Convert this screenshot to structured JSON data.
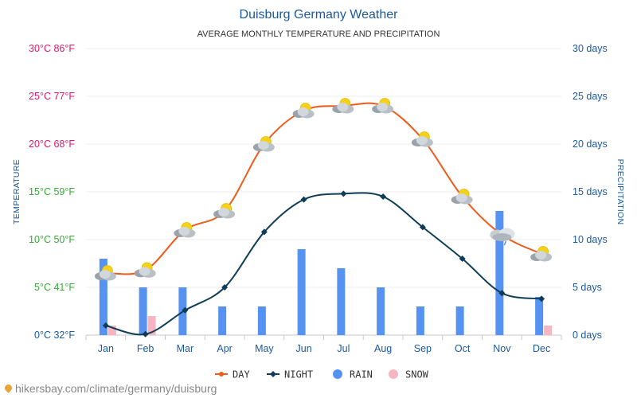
{
  "chart_data": {
    "type": "line",
    "title": "Duisburg Germany Weather",
    "subtitle": "AVERAGE MONTHLY TEMPERATURE AND PRECIPITATION",
    "ylabel_left": "TEMPERATURE",
    "ylabel_right": "PRECIPITATION",
    "categories": [
      "Jan",
      "Feb",
      "Mar",
      "Apr",
      "May",
      "Jun",
      "Jul",
      "Aug",
      "Sep",
      "Oct",
      "Nov",
      "Dec"
    ],
    "y_left": {
      "range": [
        0,
        30
      ],
      "ticks": [
        {
          "value": 0,
          "label": "0°C 32°F",
          "color": "#1c5aa0"
        },
        {
          "value": 5,
          "label": "5°C 41°F",
          "color": "#3aa63a"
        },
        {
          "value": 10,
          "label": "10°C 50°F",
          "color": "#3aa63a"
        },
        {
          "value": 15,
          "label": "15°C 59°F",
          "color": "#3aa63a"
        },
        {
          "value": 20,
          "label": "20°C 68°F",
          "color": "#e0166e"
        },
        {
          "value": 25,
          "label": "25°C 77°F",
          "color": "#e0166e"
        },
        {
          "value": 30,
          "label": "30°C 86°F",
          "color": "#e0166e"
        }
      ]
    },
    "y_right": {
      "range": [
        0,
        30
      ],
      "ticks": [
        {
          "value": 0,
          "label": "0 days"
        },
        {
          "value": 5,
          "label": "5 days"
        },
        {
          "value": 10,
          "label": "10 days"
        },
        {
          "value": 15,
          "label": "15 days"
        },
        {
          "value": 20,
          "label": "20 days"
        },
        {
          "value": 25,
          "label": "25 days"
        },
        {
          "value": 30,
          "label": "30 days"
        }
      ]
    },
    "grid": true,
    "legend_position": "bottom",
    "series": [
      {
        "name": "DAY",
        "type": "line",
        "axis": "left",
        "color": "#f05a1a",
        "marker": "weather-icon",
        "values": [
          6.5,
          6.8,
          11,
          13,
          20,
          23.5,
          24,
          24,
          20.5,
          14.5,
          10.5,
          8.5
        ]
      },
      {
        "name": "NIGHT",
        "type": "line",
        "axis": "left",
        "color": "#0f3d57",
        "marker": "diamond",
        "values": [
          1,
          0.1,
          2.6,
          5,
          10.8,
          14.2,
          14.8,
          14.5,
          11.3,
          8,
          4.4,
          3.8
        ]
      },
      {
        "name": "RAIN",
        "type": "bar",
        "axis": "right",
        "color": "#5592f2",
        "values": [
          8,
          5,
          5,
          3,
          3,
          9,
          7,
          5,
          3,
          3,
          13,
          4
        ]
      },
      {
        "name": "SNOW",
        "type": "bar",
        "axis": "right",
        "color": "#f7b5c4",
        "values": [
          1,
          2,
          0,
          0,
          0,
          0,
          0,
          0,
          0,
          0,
          0,
          1
        ]
      }
    ],
    "weather_icons": [
      "partly-cloudy-icon",
      "partly-cloudy-icon",
      "partly-cloudy-icon",
      "partly-cloudy-icon",
      "partly-cloudy-icon",
      "partly-cloudy-icon",
      "partly-cloudy-icon",
      "partly-cloudy-icon",
      "partly-cloudy-icon",
      "partly-cloudy-icon",
      "rain-cloud-icon",
      "partly-cloudy-icon"
    ]
  },
  "source": "hikersbay.com/climate/germany/duisburg"
}
